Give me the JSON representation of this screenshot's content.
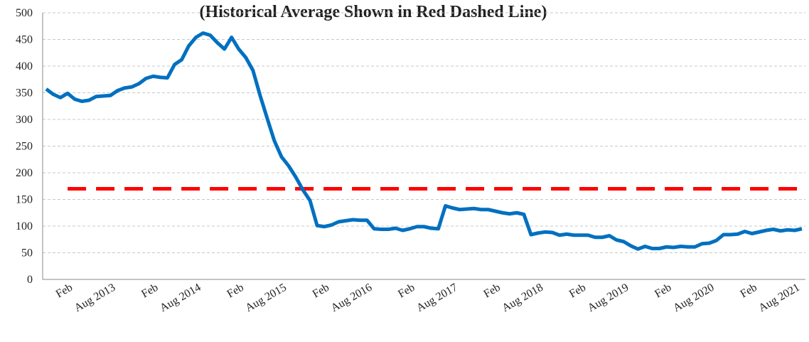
{
  "chart_data": {
    "type": "line",
    "title": "(Historical Average Shown in Red Dashed Line)",
    "categories": [
      null,
      null,
      null,
      "Feb",
      null,
      null,
      null,
      null,
      null,
      "Aug 2013",
      null,
      null,
      null,
      null,
      null,
      "Feb",
      null,
      null,
      null,
      null,
      null,
      "Aug 2014",
      null,
      null,
      null,
      null,
      null,
      "Feb",
      null,
      null,
      null,
      null,
      null,
      "Aug 2015",
      null,
      null,
      null,
      null,
      null,
      "Feb",
      null,
      null,
      null,
      null,
      null,
      "Aug 2016",
      null,
      null,
      null,
      null,
      null,
      "Feb",
      null,
      null,
      null,
      null,
      null,
      "Aug 2017",
      null,
      null,
      null,
      null,
      null,
      "Feb",
      null,
      null,
      null,
      null,
      null,
      "Aug 2018",
      null,
      null,
      null,
      null,
      null,
      "Feb",
      null,
      null,
      null,
      null,
      null,
      "Aug 2019",
      null,
      null,
      null,
      null,
      null,
      "Feb",
      null,
      null,
      null,
      null,
      null,
      "Aug 2020",
      null,
      null,
      null,
      null,
      null,
      "Feb",
      null,
      null,
      null,
      null,
      null,
      "Aug 2021",
      null
    ],
    "series": [
      {
        "color": "#0070c0",
        "dashed": false,
        "values": [
          357,
          347,
          341,
          349,
          338,
          334,
          336,
          343,
          344,
          345,
          354,
          359,
          361,
          367,
          377,
          381,
          379,
          378,
          403,
          412,
          438,
          454,
          462,
          458,
          444,
          432,
          454,
          432,
          416,
          392,
          345,
          302,
          260,
          230,
          213,
          192,
          168,
          148,
          101,
          99,
          102,
          108,
          110,
          112,
          111,
          111,
          95,
          94,
          94,
          96,
          92,
          95,
          99,
          99,
          96,
          95,
          138,
          134,
          131,
          132,
          133,
          131,
          131,
          128,
          125,
          123,
          125,
          122,
          84,
          87,
          89,
          88,
          83,
          85,
          83,
          83,
          83,
          79,
          79,
          82,
          74,
          71,
          63,
          57,
          62,
          58,
          58,
          61,
          60,
          62,
          61,
          61,
          67,
          68,
          73,
          84,
          84,
          85,
          90,
          86,
          89,
          92,
          94,
          91,
          93,
          92,
          95
        ]
      },
      {
        "color": "#ff0000",
        "dashed": true,
        "values": [
          null,
          null,
          null,
          170,
          170,
          170,
          170,
          170,
          170,
          170,
          170,
          170,
          170,
          170,
          170,
          170,
          170,
          170,
          170,
          170,
          170,
          170,
          170,
          170,
          170,
          170,
          170,
          170,
          170,
          170,
          170,
          170,
          170,
          170,
          170,
          170,
          170,
          170,
          170,
          170,
          170,
          170,
          170,
          170,
          170,
          170,
          170,
          170,
          170,
          170,
          170,
          170,
          170,
          170,
          170,
          170,
          170,
          170,
          170,
          170,
          170,
          170,
          170,
          170,
          170,
          170,
          170,
          170,
          170,
          170,
          170,
          170,
          170,
          170,
          170,
          170,
          170,
          170,
          170,
          170,
          170,
          170,
          170,
          170,
          170,
          170,
          170,
          170,
          170,
          170,
          170,
          170,
          170,
          170,
          170,
          170,
          170,
          170,
          170,
          170,
          170,
          170,
          170,
          170,
          170,
          170,
          170
        ]
      }
    ],
    "ylim": [
      0,
      500
    ],
    "yticks": [
      0,
      50,
      100,
      150,
      200,
      250,
      300,
      350,
      400,
      450,
      500
    ],
    "grid": true
  }
}
